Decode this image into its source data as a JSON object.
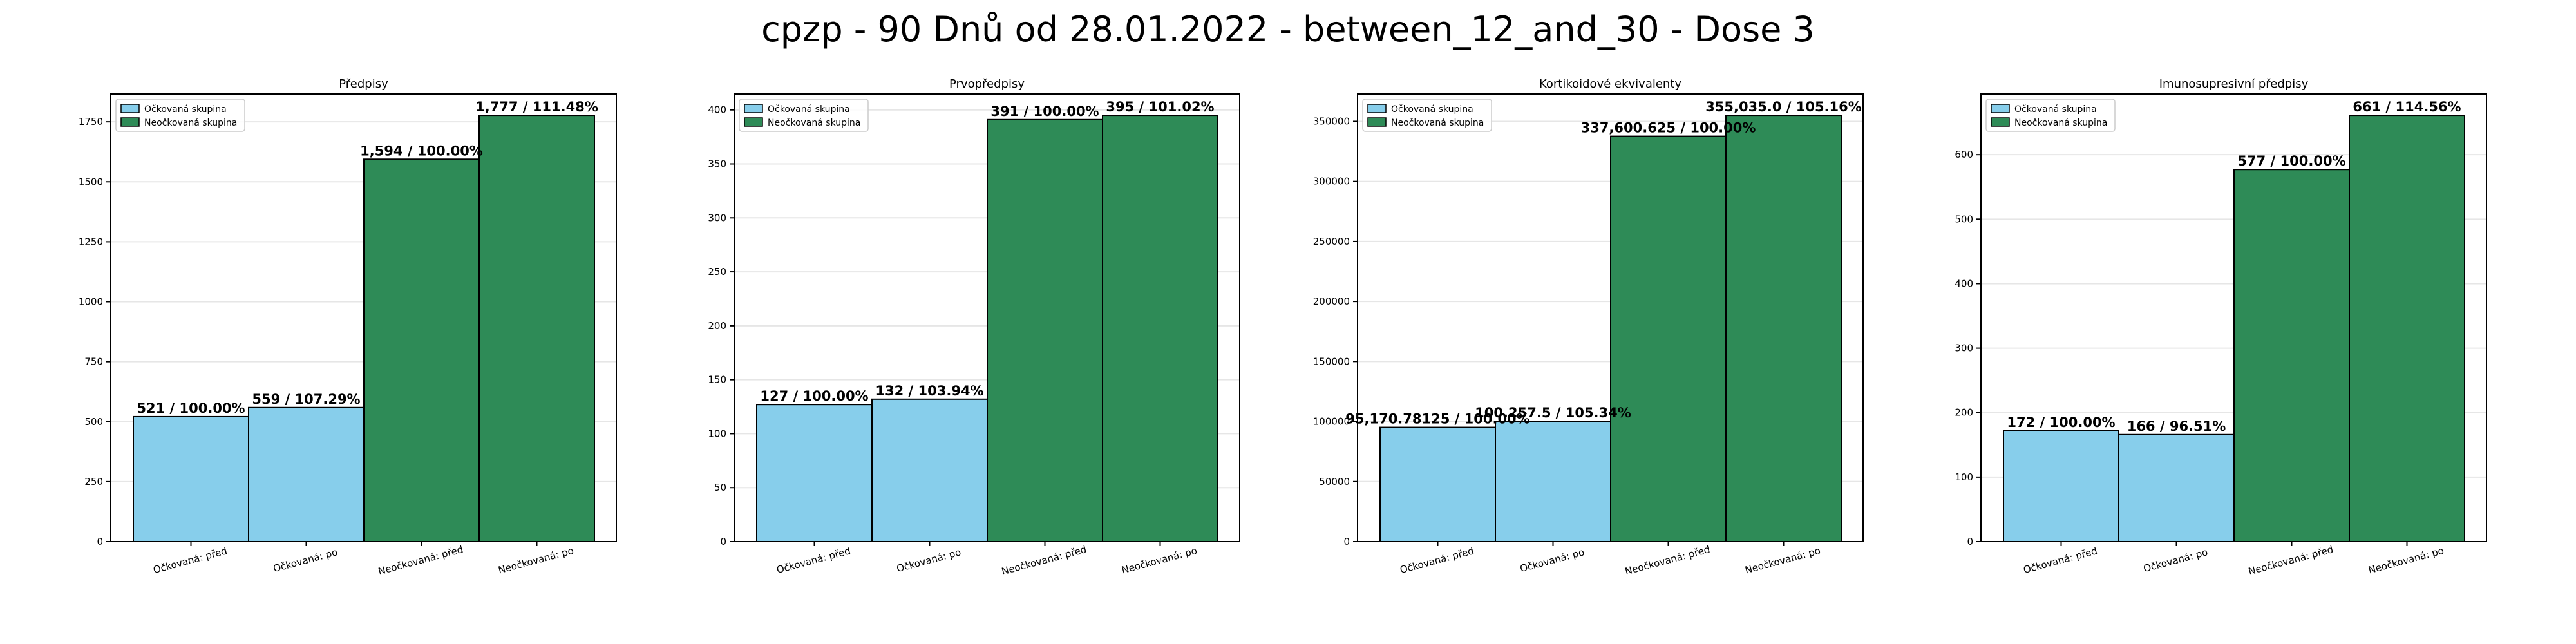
{
  "figure": {
    "suptitle": "cpzp - 90 Dnů od 28.01.2022 - between_12_and_30 - Dose 3"
  },
  "colors": {
    "vaccinated": "#87ceeb",
    "unvaccinated": "#2e8b57",
    "edge": "#000000",
    "grid": "#e6e6e6"
  },
  "chart_data": [
    {
      "type": "bar",
      "title": "Předpisy",
      "categories": [
        "Očkovaná: před",
        "Očkovaná: po",
        "Neočkovaná: před",
        "Neočkovaná: po"
      ],
      "values": [
        521,
        559,
        1594,
        1777
      ],
      "bar_labels": [
        "521 / 100.00%",
        "559 / 107.29%",
        "1,594 / 100.00%",
        "1,777 / 111.48%"
      ],
      "groups": [
        "vaccinated",
        "vaccinated",
        "unvaccinated",
        "unvaccinated"
      ],
      "legend": [
        "Očkovaná skupina",
        "Neočkovaná skupina"
      ],
      "legend_position": "top-left",
      "ylim": [
        0,
        1865.85
      ],
      "yticks": [
        0,
        250,
        500,
        750,
        1000,
        1250,
        1500,
        1750
      ],
      "ytick_labels": [
        "0",
        "250",
        "500",
        "750",
        "1000",
        "1250",
        "1500",
        "1750"
      ],
      "grid": true
    },
    {
      "type": "bar",
      "title": "Prvopředpisy",
      "categories": [
        "Očkovaná: před",
        "Očkovaná: po",
        "Neočkovaná: před",
        "Neočkovaná: po"
      ],
      "values": [
        127,
        132,
        391,
        395
      ],
      "bar_labels": [
        "127 / 100.00%",
        "132 / 103.94%",
        "391 / 100.00%",
        "395 / 101.02%"
      ],
      "groups": [
        "vaccinated",
        "vaccinated",
        "unvaccinated",
        "unvaccinated"
      ],
      "legend": [
        "Očkovaná skupina",
        "Neočkovaná skupina"
      ],
      "legend_position": "top-left",
      "ylim": [
        0,
        414.75
      ],
      "yticks": [
        0,
        50,
        100,
        150,
        200,
        250,
        300,
        350,
        400
      ],
      "ytick_labels": [
        "0",
        "50",
        "100",
        "150",
        "200",
        "250",
        "300",
        "350",
        "400"
      ],
      "grid": true
    },
    {
      "type": "bar",
      "title": "Kortikoidové ekvivalenty",
      "categories": [
        "Očkovaná: před",
        "Očkovaná: po",
        "Neočkovaná: před",
        "Neočkovaná: po"
      ],
      "values": [
        95170.78125,
        100257.5,
        337600.625,
        355035.0
      ],
      "bar_labels": [
        "95,170.78125 / 100.00%",
        "100,257.5 / 105.34%",
        "337,600.625 / 100.00%",
        "355,035.0 / 105.16%"
      ],
      "groups": [
        "vaccinated",
        "vaccinated",
        "unvaccinated",
        "unvaccinated"
      ],
      "legend": [
        "Očkovaná skupina",
        "Neočkovaná skupina"
      ],
      "legend_position": "top-left",
      "ylim": [
        0,
        372786.75
      ],
      "yticks": [
        0,
        50000,
        100000,
        150000,
        200000,
        250000,
        300000,
        350000
      ],
      "ytick_labels": [
        "0",
        "50000",
        "100000",
        "150000",
        "200000",
        "250000",
        "300000",
        "350000"
      ],
      "grid": true
    },
    {
      "type": "bar",
      "title": "Imunosupresivní předpisy",
      "categories": [
        "Očkovaná: před",
        "Očkovaná: po",
        "Neočkovaná: před",
        "Neočkovaná: po"
      ],
      "values": [
        172,
        166,
        577,
        661
      ],
      "bar_labels": [
        "172 / 100.00%",
        "166 / 96.51%",
        "577 / 100.00%",
        "661 / 114.56%"
      ],
      "groups": [
        "vaccinated",
        "vaccinated",
        "unvaccinated",
        "unvaccinated"
      ],
      "legend": [
        "Očkovaná skupina",
        "Neočkovaná skupina"
      ],
      "legend_position": "top-left",
      "ylim": [
        0,
        694.05
      ],
      "yticks": [
        0,
        100,
        200,
        300,
        400,
        500,
        600
      ],
      "ytick_labels": [
        "0",
        "100",
        "200",
        "300",
        "400",
        "500",
        "600"
      ],
      "grid": true
    }
  ]
}
